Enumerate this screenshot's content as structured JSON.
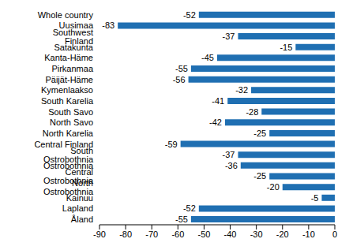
{
  "chart_data": {
    "type": "bar",
    "orientation": "horizontal",
    "categories": [
      "Whole country",
      "Uusimaa",
      "Southwest Finland",
      "Satakunta",
      "Kanta-Häme",
      "Pirkanmaa",
      "Päijät-Häme",
      "Kymenlaakso",
      "South Karelia",
      "South Savo",
      "North Savo",
      "North Karelia",
      "Central Finland",
      "South Ostrobothnia",
      "Ostrobothnia",
      "Central Ostrobothnia",
      "North Ostrobothnia",
      "Kainuu",
      "Lapland",
      "Åland"
    ],
    "values": [
      -52,
      -83,
      -37,
      -15,
      -45,
      -55,
      -56,
      -32,
      -41,
      -28,
      -42,
      -25,
      -59,
      -37,
      -36,
      -25,
      -20,
      -5,
      -52,
      -55
    ],
    "color": "#1f6fb2",
    "xlim": [
      -90,
      0
    ],
    "xticks": [
      -90,
      -80,
      -70,
      -60,
      -50,
      -40,
      -30,
      -20,
      -10,
      0
    ],
    "grid": false,
    "data_labels": true
  }
}
